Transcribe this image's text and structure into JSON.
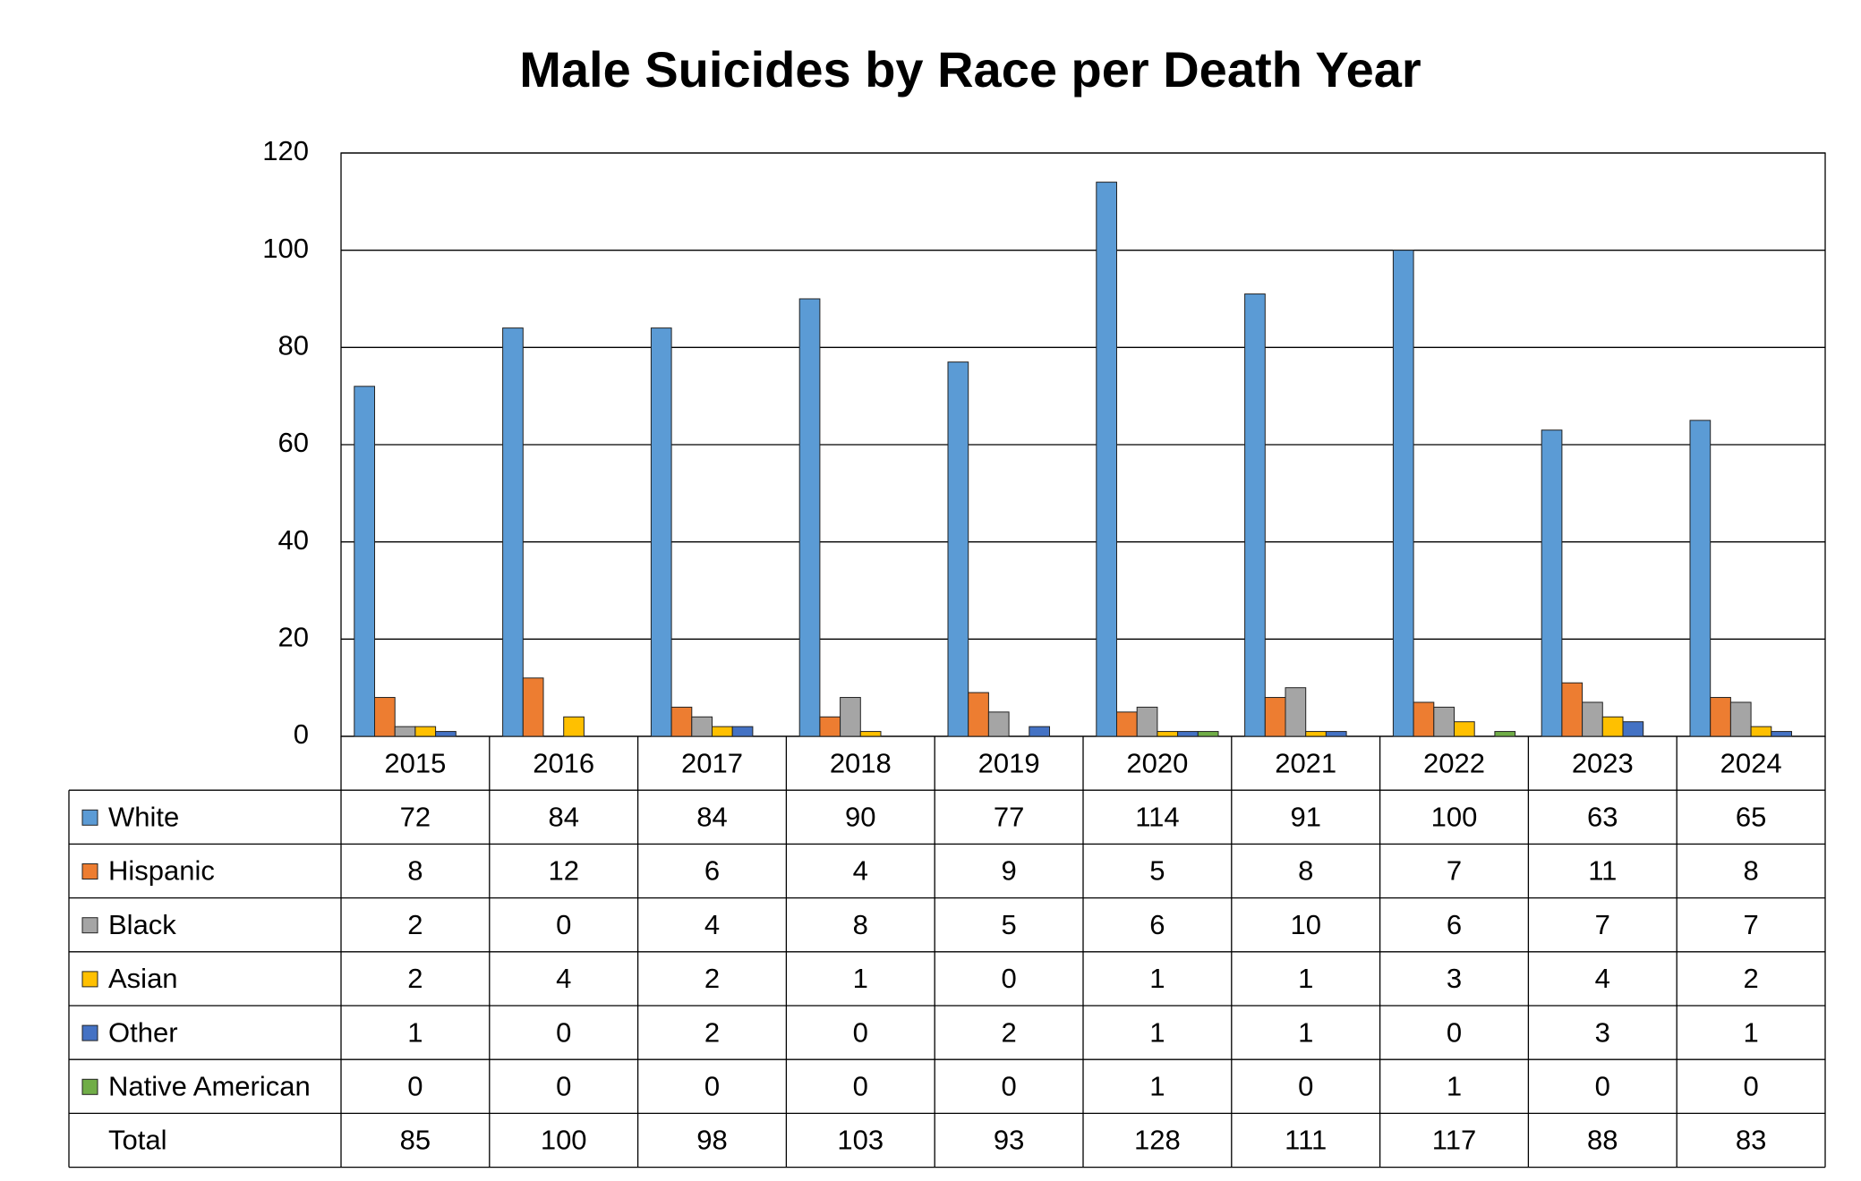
{
  "chart_data": {
    "type": "bar",
    "title": "Male Suicides by Race per Death Year",
    "categories": [
      "2015",
      "2016",
      "2017",
      "2018",
      "2019",
      "2020",
      "2021",
      "2022",
      "2023",
      "2024"
    ],
    "series": [
      {
        "name": "White",
        "color": "#5b9bd5",
        "values": [
          72,
          84,
          84,
          90,
          77,
          114,
          91,
          100,
          63,
          65
        ]
      },
      {
        "name": "Hispanic",
        "color": "#ed7d31",
        "values": [
          8,
          12,
          6,
          4,
          9,
          5,
          8,
          7,
          11,
          8
        ]
      },
      {
        "name": "Black",
        "color": "#a5a5a5",
        "values": [
          2,
          0,
          4,
          8,
          5,
          6,
          10,
          6,
          7,
          7
        ]
      },
      {
        "name": "Asian",
        "color": "#ffc000",
        "values": [
          2,
          4,
          2,
          1,
          0,
          1,
          1,
          3,
          4,
          2
        ]
      },
      {
        "name": "Other",
        "color": "#4472c4",
        "values": [
          1,
          0,
          2,
          0,
          2,
          1,
          1,
          0,
          3,
          1
        ]
      },
      {
        "name": "Native American",
        "color": "#70ad47",
        "values": [
          0,
          0,
          0,
          0,
          0,
          1,
          0,
          1,
          0,
          0
        ]
      }
    ],
    "ylim": [
      0,
      120
    ],
    "yticks": [
      0,
      20,
      40,
      60,
      80,
      100,
      120
    ],
    "grid": true,
    "data_table": {
      "total_label": "Total",
      "totals": [
        85,
        100,
        98,
        103,
        93,
        128,
        111,
        117,
        88,
        83
      ]
    }
  }
}
